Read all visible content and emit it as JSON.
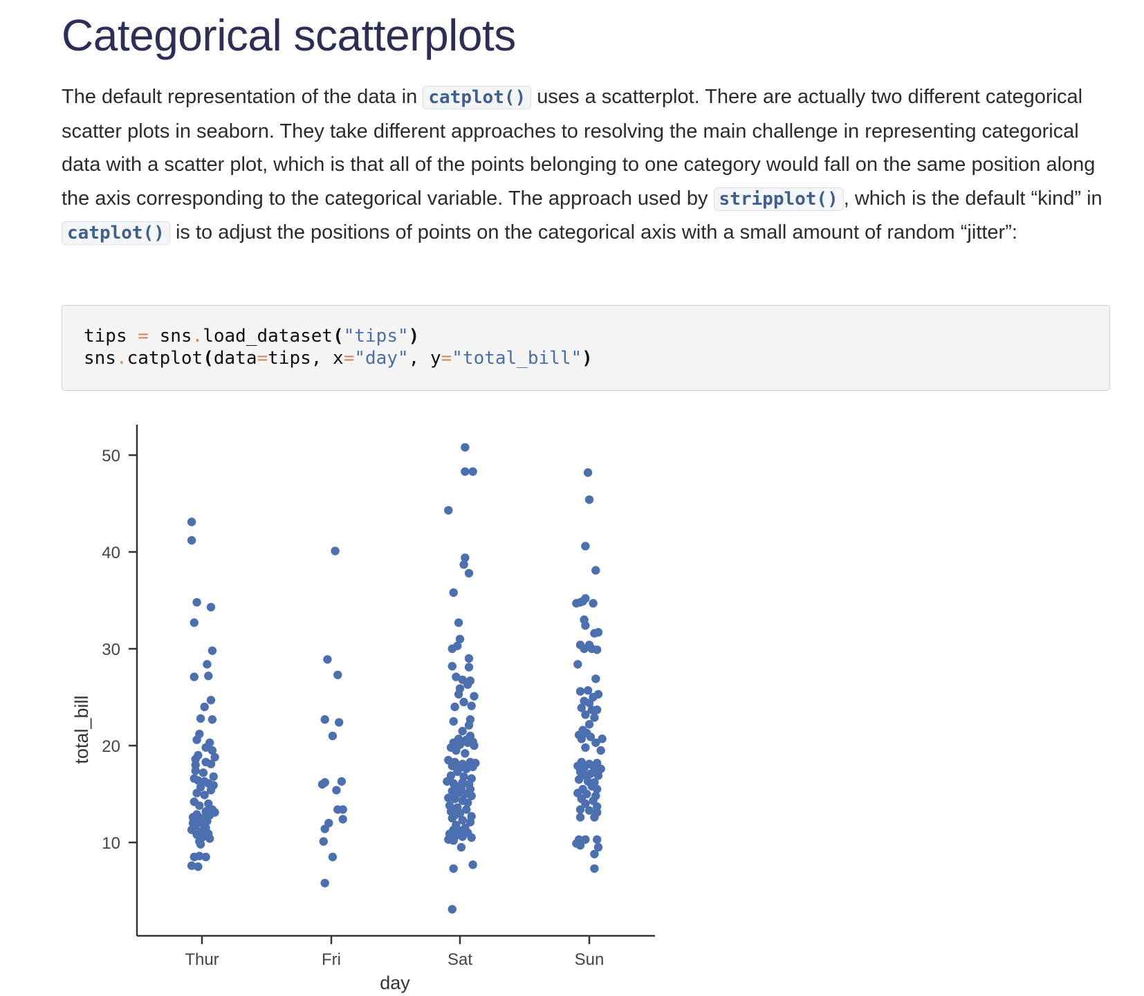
{
  "page": {
    "title": "Categorical scatterplots",
    "paragraph": {
      "t1": "The default representation of the data in ",
      "c1": "catplot()",
      "t2": " uses a scatterplot. There are actually two different categorical scatter plots in seaborn. They take different approaches to resolving the main challenge in representing categorical data with a scatter plot, which is that all of the points belonging to one category would fall on the same position along the axis corresponding to the categorical variable. The approach used by ",
      "c2": "stripplot()",
      "t3": ", which is the default “kind” in ",
      "c3": "catplot()",
      "t4": " is to adjust the positions of points on the categorical axis with a small amount of random “jitter”:"
    },
    "code": {
      "line1": {
        "a": "tips ",
        "op1": "=",
        "b": " sns",
        "dot": ".",
        "c": "load_dataset",
        "p1": "(",
        "s1": "\"tips\"",
        "p2": ")"
      },
      "line2": {
        "a": "sns",
        "dot": ".",
        "b": "catplot",
        "p1": "(",
        "c": "data",
        "op1": "=",
        "d": "tips, x",
        "op2": "=",
        "s1": "\"day\"",
        "e": ", y",
        "op3": "=",
        "s2": "\"total_bill\"",
        "p2": ")"
      }
    }
  },
  "chart_data": {
    "type": "scatter",
    "title": "",
    "xlabel": "day",
    "ylabel": "total_bill",
    "categories": [
      "Thur",
      "Fri",
      "Sat",
      "Sun"
    ],
    "yticks": [
      10,
      20,
      30,
      40,
      50
    ],
    "ylim": [
      1.5,
      53.5
    ],
    "grid": false,
    "color": "#4c6fb0",
    "points": {
      "Thur": [
        {
          "j": -0.08,
          "v": 43.1
        },
        {
          "j": -0.08,
          "v": 41.2
        },
        {
          "j": -0.04,
          "v": 34.8
        },
        {
          "j": 0.07,
          "v": 34.3
        },
        {
          "j": -0.06,
          "v": 32.7
        },
        {
          "j": 0.08,
          "v": 29.8
        },
        {
          "j": 0.04,
          "v": 28.4
        },
        {
          "j": -0.06,
          "v": 27.1
        },
        {
          "j": 0.05,
          "v": 27.2
        },
        {
          "j": 0.07,
          "v": 24.7
        },
        {
          "j": 0.02,
          "v": 24.0
        },
        {
          "j": -0.01,
          "v": 22.8
        },
        {
          "j": 0.08,
          "v": 22.7
        },
        {
          "j": -0.02,
          "v": 21.2
        },
        {
          "j": -0.04,
          "v": 20.6
        },
        {
          "j": 0.06,
          "v": 20.3
        },
        {
          "j": 0.03,
          "v": 19.8
        },
        {
          "j": 0.08,
          "v": 19.5
        },
        {
          "j": -0.03,
          "v": 19.0
        },
        {
          "j": 0.1,
          "v": 18.8
        },
        {
          "j": -0.05,
          "v": 18.6
        },
        {
          "j": 0.03,
          "v": 18.3
        },
        {
          "j": -0.05,
          "v": 18.0
        },
        {
          "j": 0.07,
          "v": 18.1
        },
        {
          "j": -0.05,
          "v": 17.4
        },
        {
          "j": 0.01,
          "v": 17.2
        },
        {
          "j": 0.09,
          "v": 16.8
        },
        {
          "j": -0.06,
          "v": 16.6
        },
        {
          "j": -0.03,
          "v": 16.4
        },
        {
          "j": 0.02,
          "v": 16.3
        },
        {
          "j": 0.05,
          "v": 16.1
        },
        {
          "j": 0.09,
          "v": 15.9
        },
        {
          "j": -0.01,
          "v": 15.7
        },
        {
          "j": 0.07,
          "v": 15.4
        },
        {
          "j": -0.04,
          "v": 15.1
        },
        {
          "j": 0.02,
          "v": 14.9
        },
        {
          "j": -0.06,
          "v": 14.2
        },
        {
          "j": 0.05,
          "v": 14.0
        },
        {
          "j": -0.02,
          "v": 13.8
        },
        {
          "j": 0.08,
          "v": 13.4
        },
        {
          "j": 0.03,
          "v": 13.2
        },
        {
          "j": 0.1,
          "v": 13.1
        },
        {
          "j": -0.04,
          "v": 12.9
        },
        {
          "j": 0.06,
          "v": 12.8
        },
        {
          "j": -0.07,
          "v": 12.6
        },
        {
          "j": 0.0,
          "v": 12.5
        },
        {
          "j": -0.03,
          "v": 12.3
        },
        {
          "j": 0.04,
          "v": 12.2
        },
        {
          "j": -0.07,
          "v": 12.0
        },
        {
          "j": 0.01,
          "v": 11.9
        },
        {
          "j": -0.05,
          "v": 11.7
        },
        {
          "j": 0.03,
          "v": 11.5
        },
        {
          "j": -0.08,
          "v": 11.3
        },
        {
          "j": -0.01,
          "v": 11.1
        },
        {
          "j": 0.05,
          "v": 10.9
        },
        {
          "j": -0.04,
          "v": 10.8
        },
        {
          "j": 0.0,
          "v": 10.5
        },
        {
          "j": 0.06,
          "v": 10.4
        },
        {
          "j": -0.02,
          "v": 10.1
        },
        {
          "j": -0.01,
          "v": 9.8
        },
        {
          "j": -0.06,
          "v": 8.5
        },
        {
          "j": -0.02,
          "v": 8.6
        },
        {
          "j": 0.03,
          "v": 8.5
        },
        {
          "j": -0.08,
          "v": 7.6
        },
        {
          "j": -0.03,
          "v": 7.5
        }
      ],
      "Fri": [
        {
          "j": 0.03,
          "v": 40.1
        },
        {
          "j": -0.03,
          "v": 28.9
        },
        {
          "j": 0.05,
          "v": 27.3
        },
        {
          "j": -0.05,
          "v": 22.7
        },
        {
          "j": 0.06,
          "v": 22.4
        },
        {
          "j": 0.01,
          "v": 21.0
        },
        {
          "j": -0.07,
          "v": 16.0
        },
        {
          "j": -0.05,
          "v": 16.2
        },
        {
          "j": 0.08,
          "v": 16.3
        },
        {
          "j": 0.04,
          "v": 15.4
        },
        {
          "j": 0.05,
          "v": 13.4
        },
        {
          "j": 0.09,
          "v": 13.4
        },
        {
          "j": 0.09,
          "v": 12.4
        },
        {
          "j": -0.02,
          "v": 12.0
        },
        {
          "j": -0.05,
          "v": 11.4
        },
        {
          "j": -0.06,
          "v": 10.1
        },
        {
          "j": 0.01,
          "v": 8.5
        },
        {
          "j": -0.05,
          "v": 5.8
        }
      ],
      "Sat": [
        {
          "j": 0.04,
          "v": 50.8
        },
        {
          "j": 0.04,
          "v": 48.3
        },
        {
          "j": 0.1,
          "v": 48.3
        },
        {
          "j": -0.09,
          "v": 44.3
        },
        {
          "j": 0.04,
          "v": 39.4
        },
        {
          "j": 0.03,
          "v": 38.7
        },
        {
          "j": 0.07,
          "v": 37.8
        },
        {
          "j": -0.05,
          "v": 35.8
        },
        {
          "j": -0.01,
          "v": 32.7
        },
        {
          "j": 0.0,
          "v": 31.0
        },
        {
          "j": -0.02,
          "v": 30.3
        },
        {
          "j": -0.06,
          "v": 30.0
        },
        {
          "j": 0.07,
          "v": 29.0
        },
        {
          "j": -0.06,
          "v": 28.2
        },
        {
          "j": 0.07,
          "v": 28.1
        },
        {
          "j": -0.03,
          "v": 27.1
        },
        {
          "j": 0.02,
          "v": 26.8
        },
        {
          "j": 0.08,
          "v": 26.7
        },
        {
          "j": 0.06,
          "v": 26.3
        },
        {
          "j": 0.0,
          "v": 25.9
        },
        {
          "j": -0.01,
          "v": 25.3
        },
        {
          "j": 0.11,
          "v": 25.1
        },
        {
          "j": 0.03,
          "v": 24.5
        },
        {
          "j": 0.09,
          "v": 24.1
        },
        {
          "j": -0.04,
          "v": 24.0
        },
        {
          "j": 0.08,
          "v": 22.7
        },
        {
          "j": -0.05,
          "v": 22.5
        },
        {
          "j": 0.07,
          "v": 22.1
        },
        {
          "j": 0.02,
          "v": 21.5
        },
        {
          "j": 0.08,
          "v": 21.0
        },
        {
          "j": -0.01,
          "v": 20.7
        },
        {
          "j": 0.05,
          "v": 20.6
        },
        {
          "j": 0.1,
          "v": 20.4
        },
        {
          "j": -0.05,
          "v": 20.3
        },
        {
          "j": 0.0,
          "v": 20.1
        },
        {
          "j": 0.06,
          "v": 20.3
        },
        {
          "j": 0.11,
          "v": 20.0
        },
        {
          "j": -0.07,
          "v": 19.8
        },
        {
          "j": -0.03,
          "v": 19.5
        },
        {
          "j": 0.04,
          "v": 19.2
        },
        {
          "j": -0.09,
          "v": 18.5
        },
        {
          "j": -0.04,
          "v": 18.3
        },
        {
          "j": 0.02,
          "v": 18.1
        },
        {
          "j": 0.08,
          "v": 18.3
        },
        {
          "j": 0.12,
          "v": 18.2
        },
        {
          "j": -0.06,
          "v": 17.9
        },
        {
          "j": 0.0,
          "v": 17.7
        },
        {
          "j": 0.05,
          "v": 17.6
        },
        {
          "j": 0.1,
          "v": 17.8
        },
        {
          "j": -0.02,
          "v": 17.3
        },
        {
          "j": -0.07,
          "v": 16.9
        },
        {
          "j": 0.03,
          "v": 16.8
        },
        {
          "j": 0.09,
          "v": 16.6
        },
        {
          "j": -0.1,
          "v": 16.3
        },
        {
          "j": -0.05,
          "v": 16.1
        },
        {
          "j": 0.02,
          "v": 16.2
        },
        {
          "j": 0.07,
          "v": 16.0
        },
        {
          "j": -0.03,
          "v": 15.8
        },
        {
          "j": 0.01,
          "v": 15.6
        },
        {
          "j": 0.08,
          "v": 15.5
        },
        {
          "j": -0.06,
          "v": 15.3
        },
        {
          "j": -0.01,
          "v": 15.1
        },
        {
          "j": 0.04,
          "v": 15.0
        },
        {
          "j": 0.09,
          "v": 14.8
        },
        {
          "j": -0.09,
          "v": 14.6
        },
        {
          "j": -0.04,
          "v": 14.5
        },
        {
          "j": 0.02,
          "v": 14.3
        },
        {
          "j": 0.06,
          "v": 14.1
        },
        {
          "j": -0.08,
          "v": 13.8
        },
        {
          "j": -0.02,
          "v": 13.6
        },
        {
          "j": 0.05,
          "v": 13.4
        },
        {
          "j": -0.07,
          "v": 13.2
        },
        {
          "j": 0.0,
          "v": 13.0
        },
        {
          "j": -0.04,
          "v": 12.8
        },
        {
          "j": 0.09,
          "v": 12.7
        },
        {
          "j": -0.06,
          "v": 12.5
        },
        {
          "j": 0.02,
          "v": 12.3
        },
        {
          "j": 0.08,
          "v": 12.1
        },
        {
          "j": -0.03,
          "v": 11.8
        },
        {
          "j": 0.04,
          "v": 11.5
        },
        {
          "j": -0.05,
          "v": 11.3
        },
        {
          "j": 0.0,
          "v": 11.2
        },
        {
          "j": 0.06,
          "v": 11.0
        },
        {
          "j": -0.08,
          "v": 10.9
        },
        {
          "j": -0.03,
          "v": 10.7
        },
        {
          "j": 0.02,
          "v": 10.6
        },
        {
          "j": 0.09,
          "v": 10.5
        },
        {
          "j": -0.09,
          "v": 10.3
        },
        {
          "j": -0.05,
          "v": 10.2
        },
        {
          "j": 0.01,
          "v": 9.5
        },
        {
          "j": -0.05,
          "v": 7.3
        },
        {
          "j": 0.1,
          "v": 7.7
        },
        {
          "j": -0.06,
          "v": 3.1
        }
      ],
      "Sun": [
        {
          "j": -0.01,
          "v": 48.2
        },
        {
          "j": 0.0,
          "v": 45.4
        },
        {
          "j": -0.03,
          "v": 40.6
        },
        {
          "j": 0.05,
          "v": 38.1
        },
        {
          "j": -0.1,
          "v": 34.7
        },
        {
          "j": -0.07,
          "v": 34.8
        },
        {
          "j": -0.03,
          "v": 35.2
        },
        {
          "j": -0.05,
          "v": 34.9
        },
        {
          "j": 0.03,
          "v": 34.7
        },
        {
          "j": -0.04,
          "v": 33.0
        },
        {
          "j": -0.03,
          "v": 32.4
        },
        {
          "j": 0.04,
          "v": 31.6
        },
        {
          "j": 0.07,
          "v": 31.7
        },
        {
          "j": -0.07,
          "v": 30.4
        },
        {
          "j": 0.0,
          "v": 30.4
        },
        {
          "j": -0.04,
          "v": 30.0
        },
        {
          "j": 0.06,
          "v": 29.9
        },
        {
          "j": 0.02,
          "v": 30.0
        },
        {
          "j": -0.09,
          "v": 28.4
        },
        {
          "j": 0.05,
          "v": 26.9
        },
        {
          "j": -0.07,
          "v": 25.6
        },
        {
          "j": -0.01,
          "v": 25.7
        },
        {
          "j": 0.03,
          "v": 25.0
        },
        {
          "j": 0.07,
          "v": 25.3
        },
        {
          "j": -0.04,
          "v": 24.6
        },
        {
          "j": 0.0,
          "v": 24.4
        },
        {
          "j": -0.06,
          "v": 23.9
        },
        {
          "j": 0.02,
          "v": 23.7
        },
        {
          "j": 0.06,
          "v": 23.7
        },
        {
          "j": -0.03,
          "v": 23.2
        },
        {
          "j": 0.04,
          "v": 22.9
        },
        {
          "j": 0.0,
          "v": 22.2
        },
        {
          "j": -0.05,
          "v": 21.6
        },
        {
          "j": -0.02,
          "v": 21.3
        },
        {
          "j": -0.08,
          "v": 21.1
        },
        {
          "j": 0.01,
          "v": 20.9
        },
        {
          "j": -0.06,
          "v": 20.7
        },
        {
          "j": 0.1,
          "v": 20.7
        },
        {
          "j": 0.05,
          "v": 20.3
        },
        {
          "j": -0.03,
          "v": 19.8
        },
        {
          "j": 0.09,
          "v": 19.5
        },
        {
          "j": -0.06,
          "v": 18.3
        },
        {
          "j": -0.09,
          "v": 17.9
        },
        {
          "j": 0.0,
          "v": 18.1
        },
        {
          "j": 0.06,
          "v": 18.2
        },
        {
          "j": 0.03,
          "v": 17.9
        },
        {
          "j": -0.04,
          "v": 17.7
        },
        {
          "j": 0.09,
          "v": 17.6
        },
        {
          "j": 0.05,
          "v": 17.4
        },
        {
          "j": -0.07,
          "v": 17.3
        },
        {
          "j": 0.01,
          "v": 17.1
        },
        {
          "j": -0.03,
          "v": 16.9
        },
        {
          "j": 0.07,
          "v": 16.9
        },
        {
          "j": -0.08,
          "v": 16.5
        },
        {
          "j": -0.01,
          "v": 16.3
        },
        {
          "j": 0.04,
          "v": 16.2
        },
        {
          "j": 0.02,
          "v": 15.8
        },
        {
          "j": -0.05,
          "v": 15.5
        },
        {
          "j": 0.06,
          "v": 15.5
        },
        {
          "j": -0.09,
          "v": 15.1
        },
        {
          "j": -0.02,
          "v": 15.0
        },
        {
          "j": 0.05,
          "v": 14.8
        },
        {
          "j": -0.06,
          "v": 14.5
        },
        {
          "j": 0.03,
          "v": 14.3
        },
        {
          "j": -0.03,
          "v": 14.0
        },
        {
          "j": 0.06,
          "v": 13.7
        },
        {
          "j": -0.07,
          "v": 13.4
        },
        {
          "j": 0.0,
          "v": 13.3
        },
        {
          "j": 0.06,
          "v": 13.1
        },
        {
          "j": 0.04,
          "v": 12.6
        },
        {
          "j": -0.07,
          "v": 12.6
        },
        {
          "j": -0.08,
          "v": 10.3
        },
        {
          "j": -0.03,
          "v": 10.3
        },
        {
          "j": 0.06,
          "v": 10.3
        },
        {
          "j": -0.1,
          "v": 9.9
        },
        {
          "j": -0.07,
          "v": 9.7
        },
        {
          "j": 0.07,
          "v": 9.5
        },
        {
          "j": 0.04,
          "v": 8.8
        },
        {
          "j": 0.04,
          "v": 7.3
        }
      ]
    }
  }
}
